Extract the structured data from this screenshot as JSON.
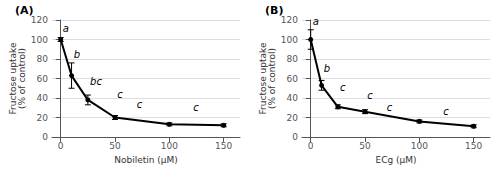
{
  "chart_data": [
    {
      "type": "line",
      "title": "(A)",
      "x": [
        0,
        10,
        25,
        50,
        100,
        150
      ],
      "values": [
        100,
        63,
        38,
        20,
        13,
        12
      ],
      "yerr": [
        2,
        13,
        5,
        2,
        1.5,
        1.5
      ],
      "color": "#000000",
      "marker": "circle",
      "annotations": [
        {
          "x": 2,
          "y": 106,
          "text": "a"
        },
        {
          "x": 12,
          "y": 80,
          "text": "b"
        },
        {
          "x": 27,
          "y": 52,
          "text": "bc"
        },
        {
          "x": 52,
          "y": 38,
          "text": "c"
        },
        {
          "x": 70,
          "y": 28,
          "text": "c"
        },
        {
          "x": 122,
          "y": 25,
          "text": "c"
        }
      ],
      "xlabel": "Nobiletin (μM)",
      "ylabel": "Fructose uptake\n(% of control)",
      "xlim": [
        -8,
        165
      ],
      "xticks": [
        0,
        50,
        100,
        150
      ],
      "ylim": [
        0,
        120
      ],
      "yticks": [
        0,
        20,
        40,
        60,
        80,
        100,
        120
      ],
      "grid": true
    },
    {
      "type": "line",
      "title": "(B)",
      "x": [
        0,
        10,
        25,
        50,
        100,
        150
      ],
      "values": [
        100,
        53,
        31,
        26,
        16,
        11
      ],
      "yerr": [
        10,
        5,
        2,
        2,
        1.5,
        1.5
      ],
      "color": "#000000",
      "marker": "circle",
      "annotations": [
        {
          "x": 2,
          "y": 113,
          "text": "a"
        },
        {
          "x": 12,
          "y": 65,
          "text": "b"
        },
        {
          "x": 27,
          "y": 46,
          "text": "c"
        },
        {
          "x": 52,
          "y": 37,
          "text": "c"
        },
        {
          "x": 70,
          "y": 25,
          "text": "c"
        },
        {
          "x": 122,
          "y": 21,
          "text": "c"
        }
      ],
      "xlabel": "ECg (μM)",
      "ylabel": "Fructose uptake\n(% of control)",
      "xlim": [
        -8,
        165
      ],
      "xticks": [
        0,
        50,
        100,
        150
      ],
      "ylim": [
        0,
        120
      ],
      "yticks": [
        0,
        20,
        40,
        60,
        80,
        100,
        120
      ],
      "grid": true
    }
  ]
}
